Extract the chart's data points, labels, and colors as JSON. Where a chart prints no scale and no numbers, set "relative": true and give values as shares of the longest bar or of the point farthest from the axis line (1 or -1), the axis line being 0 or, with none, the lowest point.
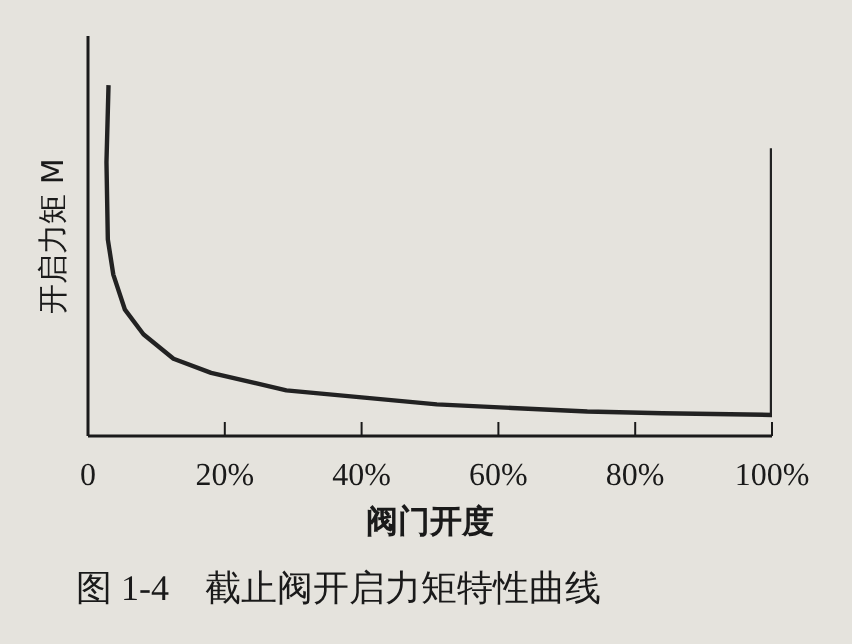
{
  "chart_data": {
    "type": "line",
    "title": "图 1-4　截止阀开启力矩特性曲线",
    "xlabel": "阀门开度",
    "ylabel": "开启力矩 M",
    "relative": true,
    "marker": "none",
    "xlim": [
      0,
      100
    ],
    "xticks": [
      0,
      {
        "value": 20,
        "label": "20%"
      },
      {
        "value": 40,
        "label": "40%"
      },
      {
        "value": 60,
        "label": "60%"
      },
      {
        "value": 80,
        "label": "80%"
      },
      {
        "value": 100,
        "label": "100%"
      }
    ],
    "x": [
      3,
      2.7,
      2.9,
      3.7,
      5.4,
      8.1,
      12.5,
      18,
      29,
      40,
      51,
      62,
      73,
      84,
      100,
      100
    ],
    "series": [
      {
        "color": "#222222",
        "values": [
          1,
          0.78,
          0.56,
          0.46,
          0.36,
          0.29,
          0.22,
          0.18,
          0.13,
          0.11,
          0.09,
          0.08,
          0.07,
          0.065,
          0.06,
          0.82
        ]
      }
    ]
  }
}
